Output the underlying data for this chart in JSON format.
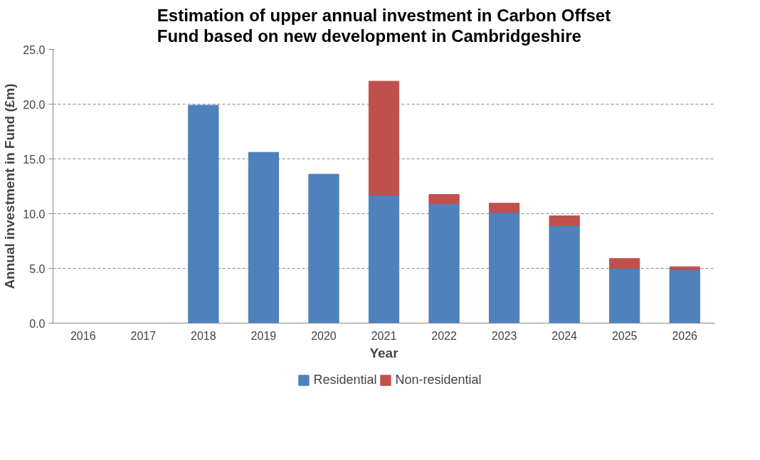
{
  "chart_data": {
    "type": "bar",
    "stacked": true,
    "title": "Estimation of upper annual investment in Carbon Offset Fund based on new development in Cambridgeshire",
    "xlabel": "Year",
    "ylabel": "Annual investment in Fund (£m)",
    "categories": [
      "2016",
      "2017",
      "2018",
      "2019",
      "2020",
      "2021",
      "2022",
      "2023",
      "2024",
      "2025",
      "2026"
    ],
    "series": [
      {
        "name": "Residential",
        "color": "#4f81bd",
        "values": [
          null,
          null,
          19.9,
          15.6,
          13.6,
          11.7,
          10.9,
          10.1,
          8.9,
          5.0,
          4.9
        ]
      },
      {
        "name": "Non-residential",
        "color": "#c0504d",
        "values": [
          null,
          null,
          null,
          null,
          null,
          10.4,
          0.85,
          0.85,
          0.9,
          0.9,
          0.25
        ]
      }
    ],
    "ylim": [
      0,
      25
    ],
    "yticks": [
      {
        "value": 0,
        "label": "0.0"
      },
      {
        "value": 5,
        "label": "5.0"
      },
      {
        "value": 10,
        "label": "10.0"
      },
      {
        "value": 15,
        "label": "15.0"
      },
      {
        "value": 20,
        "label": "20.0"
      },
      {
        "value": 25,
        "label": "25.0"
      }
    ],
    "grid": "y",
    "legend": "bottom"
  }
}
